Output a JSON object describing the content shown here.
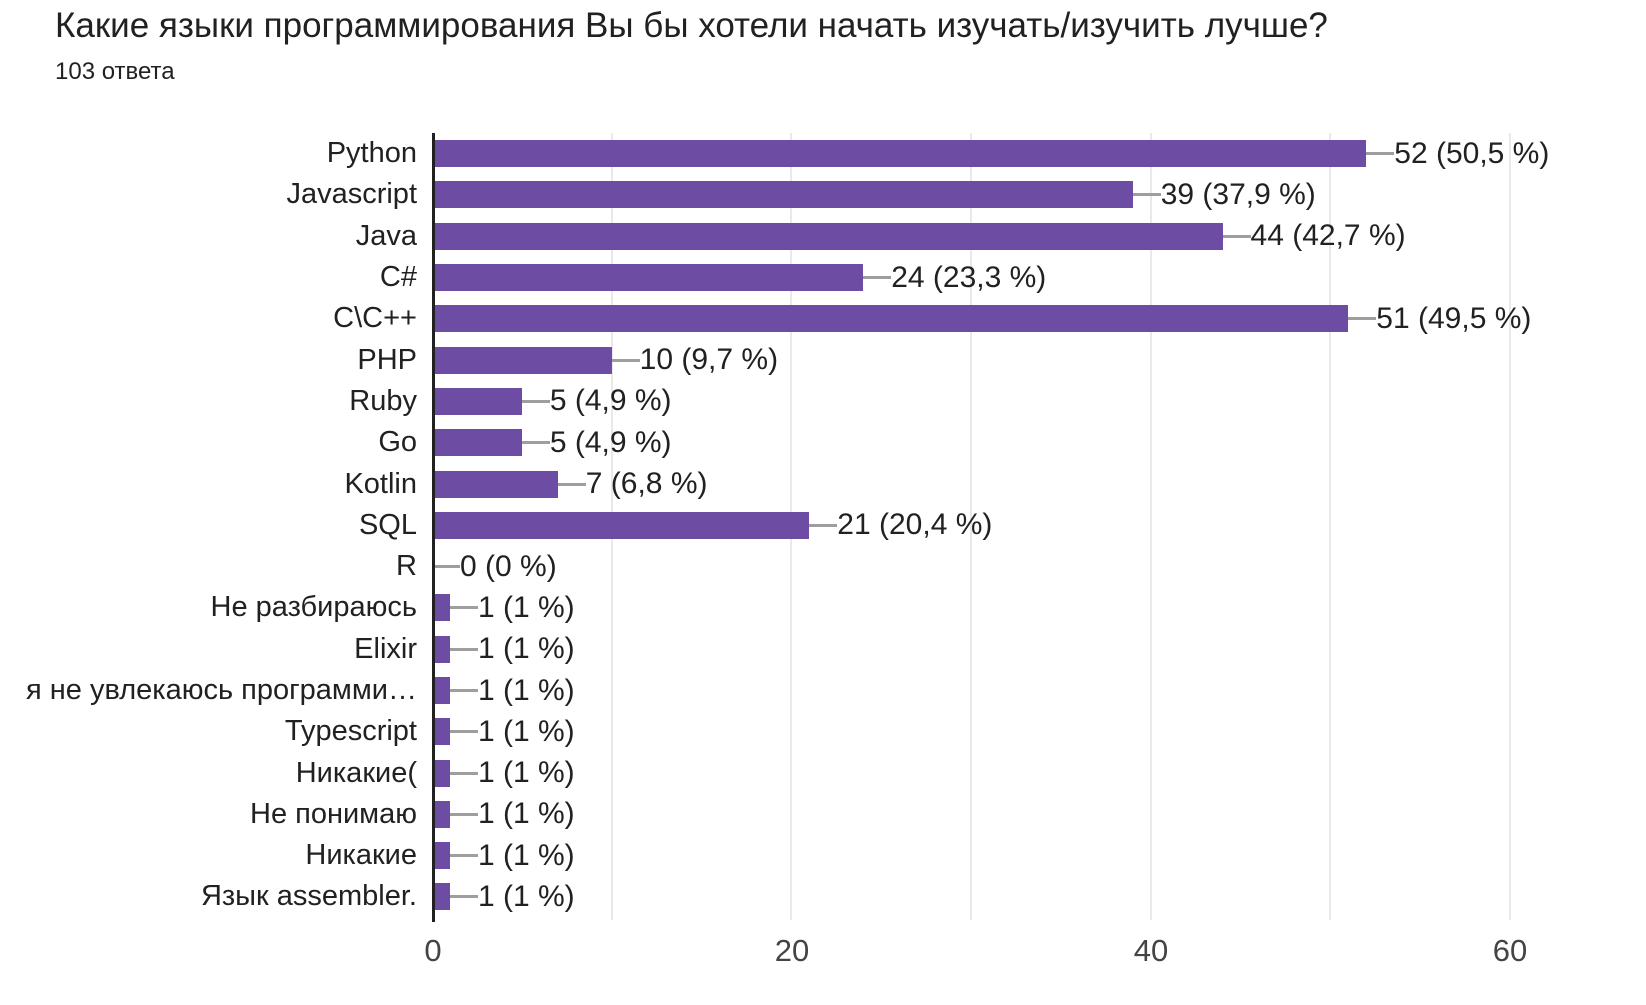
{
  "header": {
    "title": "Какие языки программирования Вы бы хотели начать изучать/изучить лучше?",
    "responses": "103 ответа"
  },
  "chart_data": {
    "type": "bar",
    "orientation": "horizontal",
    "title": "Какие языки программирования Вы бы хотели начать изучать/изучить лучше?",
    "subtitle": "103 ответа",
    "xlabel": "",
    "ylabel": "",
    "xlim": [
      0,
      60
    ],
    "x_ticks": [
      0,
      20,
      40,
      60
    ],
    "gridline_step": 10,
    "grid": true,
    "legend": "none",
    "bar_color": "#6d4ca3",
    "gridline_color": "#e9e9e9",
    "axis_color": "#212121",
    "leader_color": "#9e9e9e",
    "categories": [
      "Python",
      "Javascript",
      "Java",
      "C#",
      "C\\C++",
      "PHP",
      "Ruby",
      "Go",
      "Kotlin",
      "SQL",
      "R",
      "Не разбираюсь",
      "Elixir",
      "я не увлекаюсь программи…",
      "Typescript",
      "Никакие(",
      "Не понимаю",
      "Никакие",
      "Язык assembler."
    ],
    "values": [
      52,
      39,
      44,
      24,
      51,
      10,
      5,
      5,
      7,
      21,
      0,
      1,
      1,
      1,
      1,
      1,
      1,
      1,
      1
    ],
    "value_labels": [
      "52 (50,5 %)",
      "39 (37,9 %)",
      "44 (42,7 %)",
      "24 (23,3 %)",
      "51 (49,5 %)",
      "10 (9,7 %)",
      "5 (4,9 %)",
      "5 (4,9 %)",
      "7 (6,8 %)",
      "21 (20,4 %)",
      "0 (0 %)",
      "1 (1 %)",
      "1 (1 %)",
      "1 (1 %)",
      "1 (1 %)",
      "1 (1 %)",
      "1 (1 %)",
      "1 (1 %)",
      "1 (1 %)"
    ]
  }
}
